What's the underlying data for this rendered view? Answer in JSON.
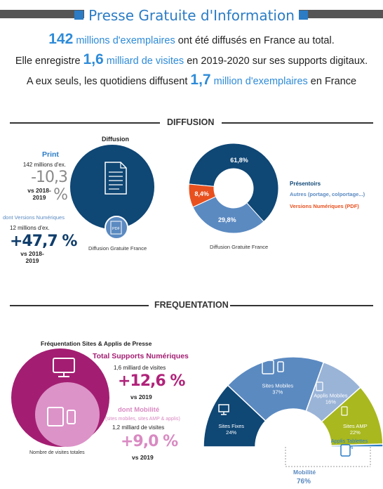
{
  "title": "Presse Gratuite d'Information",
  "intro": {
    "line1": {
      "num": "142",
      "hl": "millions d'exemplaires",
      "rest": "ont été diffusés en France au total."
    },
    "line2": {
      "pre": "Elle enregistre",
      "num": "1,6",
      "hl": "milliard de visites",
      "rest": "en 2019-2020 sur ses supports digitaux."
    },
    "line3": {
      "pre": "A eux seuls, les quotidiens diffusent",
      "num": "1,7",
      "hl": "million d'exemplaires",
      "rest": "en France"
    }
  },
  "diffusion": {
    "section_title": "DIFFUSION",
    "left": {
      "heading": "Diffusion",
      "print_label": "Print",
      "print_count": "142 millions d'ex.",
      "print_change": "-10,3 %",
      "print_vs": "vs 2018-2019",
      "digital_label": "dont Versions Numériques",
      "digital_count": "12 millions d'ex.",
      "digital_change": "+47,7 %",
      "digital_vs": "vs 2018-2019",
      "caption": "Diffusion Gratuite France",
      "pdf_text": "PDF"
    },
    "right": {
      "caption": "Diffusion Gratuite France",
      "legend": [
        {
          "label": "Présentoirs",
          "color": "#0f4775"
        },
        {
          "label": "Autres (portage, colportage...)",
          "color": "#5b8ac1"
        },
        {
          "label": "Versions Numériques (PDF)",
          "color": "#e8501e"
        }
      ]
    }
  },
  "frequentation": {
    "section_title": "FREQUENTATION",
    "left": {
      "heading": "Fréquentation Sites & Applis de Presse",
      "total_label": "Total Supports Numériques",
      "total_visits": "1,6 milliard de visites",
      "total_change": "+12,6 %",
      "total_vs": "vs 2019",
      "mob_label": "dont Mobilité",
      "mob_sub": "(sites mobiles, sites AMP & applis)",
      "mob_visits": "1,2 milliard de visites",
      "mob_change": "+9,0 %",
      "mob_vs": "vs 2019",
      "caption": "Nombre de visites totales"
    },
    "right": {
      "mobility_label": "Mobilité",
      "mobility_value": "76%"
    }
  },
  "chart_data": [
    {
      "type": "pie",
      "title": "Diffusion Gratuite France",
      "categories": [
        "Présentoirs",
        "Autres (portage, colportage...)",
        "Versions Numériques (PDF)"
      ],
      "values": [
        61.8,
        29.8,
        8.4
      ],
      "labels": [
        "61,8%",
        "29,8%",
        "8,4%"
      ],
      "colors": [
        "#0f4775",
        "#5b8ac1",
        "#e8501e"
      ],
      "legend": "right"
    },
    {
      "type": "pie",
      "title": "Nombre de visites totales",
      "categories": [
        "Sites Fixes",
        "Sites Mobiles",
        "Applis Mobiles",
        "Sites AMP",
        "Applis Tablettes"
      ],
      "values": [
        24,
        37,
        16,
        22,
        1
      ],
      "labels": [
        "24%",
        "37%",
        "16%",
        "22%",
        "1%"
      ],
      "colors": [
        "#0f4775",
        "#5b8ac1",
        "#9ab4d8",
        "#a8b81e",
        "#2b7cc5"
      ]
    }
  ]
}
